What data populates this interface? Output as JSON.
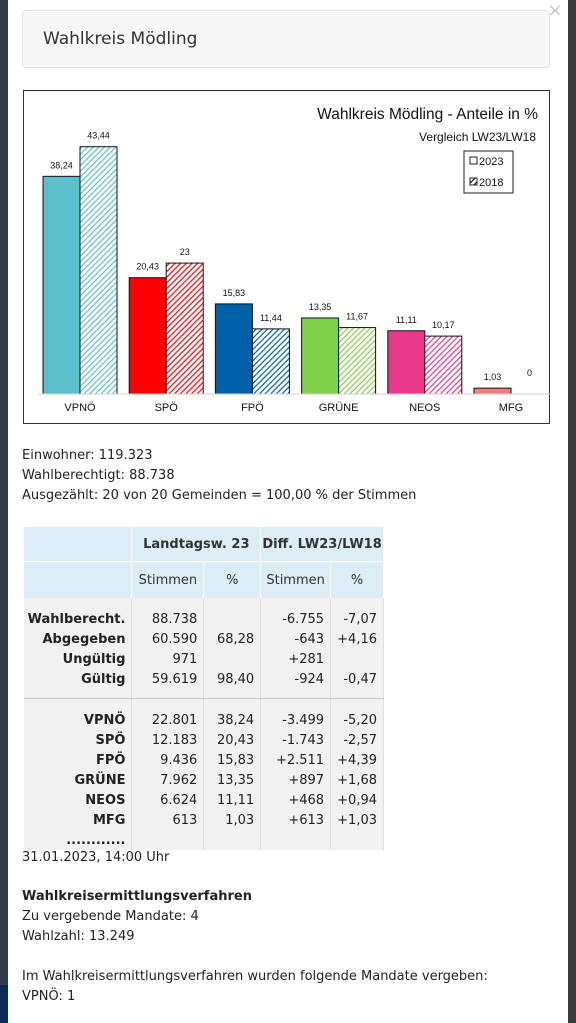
{
  "page": {
    "title": "Wahlkreis Mödling",
    "close_symbol": "×"
  },
  "chart_data": {
    "type": "bar",
    "title": "Wahlkreis Mödling - Anteile in %",
    "subtitle": "Vergleich LW23/LW18",
    "categories": [
      "VPNÖ",
      "SPÖ",
      "FPÖ",
      "GRÜNE",
      "NEOS",
      "MFG"
    ],
    "series": [
      {
        "name": "2023",
        "values": [
          38.24,
          20.43,
          15.83,
          13.35,
          11.11,
          1.03
        ],
        "labels": [
          "38,24",
          "20,43",
          "15,83",
          "13,35",
          "11,11",
          "1,03"
        ]
      },
      {
        "name": "2018",
        "values": [
          43.44,
          23,
          11.44,
          11.67,
          10.17,
          0
        ],
        "labels": [
          "43,44",
          "23",
          "11,44",
          "11,67",
          "10,17",
          "0"
        ]
      }
    ],
    "colors": [
      "#5bc0cc",
      "#ff0000",
      "#0060a8",
      "#7fd14a",
      "#e8388a",
      "#f08080"
    ],
    "legend_position": "top-right",
    "ylim": [
      0,
      45
    ],
    "grid": false
  },
  "stats": {
    "einwohner": "Einwohner: 119.323",
    "wahlberechtigt": "Wahlberechtigt: 88.738",
    "ausgezaehlt": "Ausgezählt: 20 von 20 Gemeinden = 100,00 % der Stimmen"
  },
  "table": {
    "group_headers": [
      "Landtagsw. 23",
      "Diff. LW23/LW18"
    ],
    "sub_headers": [
      "Stimmen",
      "%",
      "Stimmen",
      "%"
    ],
    "summary_rows": [
      {
        "label": "Wahlberecht.",
        "stimmen": "88.738",
        "pct": "",
        "diff_stimmen": "-6.755",
        "diff_pct": "-7,07"
      },
      {
        "label": "Abgegeben",
        "stimmen": "60.590",
        "pct": "68,28",
        "diff_stimmen": "-643",
        "diff_pct": "+4,16"
      },
      {
        "label": "Ungültig",
        "stimmen": "971",
        "pct": "",
        "diff_stimmen": "+281",
        "diff_pct": ""
      },
      {
        "label": "Gültig",
        "stimmen": "59.619",
        "pct": "98,40",
        "diff_stimmen": "-924",
        "diff_pct": "-0,47"
      }
    ],
    "party_rows": [
      {
        "label": "VPNÖ",
        "stimmen": "22.801",
        "pct": "38,24",
        "diff_stimmen": "-3.499",
        "diff_pct": "-5,20"
      },
      {
        "label": "SPÖ",
        "stimmen": "12.183",
        "pct": "20,43",
        "diff_stimmen": "-1.743",
        "diff_pct": "-2,57"
      },
      {
        "label": "FPÖ",
        "stimmen": "9.436",
        "pct": "15,83",
        "diff_stimmen": "+2.511",
        "diff_pct": "+4,39"
      },
      {
        "label": "GRÜNE",
        "stimmen": "7.962",
        "pct": "13,35",
        "diff_stimmen": "+897",
        "diff_pct": "+1,68"
      },
      {
        "label": "NEOS",
        "stimmen": "6.624",
        "pct": "11,11",
        "diff_stimmen": "+468",
        "diff_pct": "+0,94"
      },
      {
        "label": "MFG",
        "stimmen": "613",
        "pct": "1,03",
        "diff_stimmen": "+613",
        "diff_pct": "+1,03"
      },
      {
        "label": "............",
        "stimmen": "",
        "pct": "",
        "diff_stimmen": "",
        "diff_pct": ""
      }
    ]
  },
  "footer": {
    "timestamp": "31.01.2023, 14:00 Uhr",
    "section_title": "Wahlkreisermittlungsverfahren",
    "mandate": "Zu vergebende Mandate: 4",
    "wahlzahl": "Wahlzahl: 13.249",
    "info": "Im Wahlkreisermittlungsverfahren wurden folgende Mandate vergeben:",
    "result": "VPNÖ: 1"
  }
}
